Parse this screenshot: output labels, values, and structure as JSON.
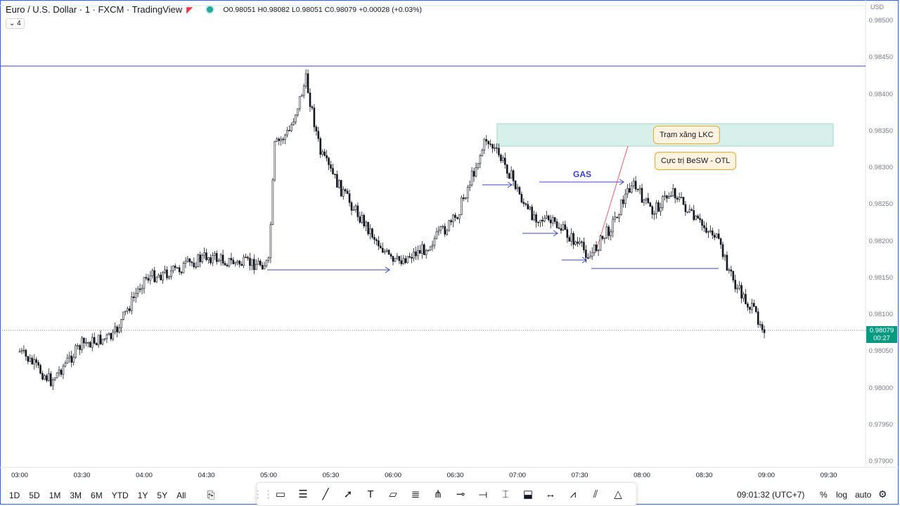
{
  "legend": {
    "symbol": "Euro / U.S. Dollar · 1 · FXCM · TradingView",
    "ohlc": "O0.98051 H0.98082 L0.98051 C0.98079 +0.00028 (+0.03%)",
    "collapse_count": "4"
  },
  "currency": "USD",
  "price_axis": [
    "0.98500",
    "0.98450",
    "0.98400",
    "0.98350",
    "0.98300",
    "0.98250",
    "0.98200",
    "0.98150",
    "0.98100",
    "0.98050",
    "0.98000",
    "0.97950",
    "0.97900"
  ],
  "last_price": {
    "value": "0.98079",
    "countdown": "00:27"
  },
  "time_axis": [
    "03:00",
    "03:30",
    "04:00",
    "04:30",
    "05:00",
    "05:30",
    "06:00",
    "06:30",
    "07:00",
    "07:30",
    "08:00",
    "08:30",
    "09:00",
    "09:30"
  ],
  "annotations": {
    "callout_1": "Trạm xăng LKC",
    "callout_2": "Cực trị BeSW - OTL",
    "gas_label": "GAS"
  },
  "timeframes": [
    "1D",
    "5D",
    "1M",
    "3M",
    "6M",
    "YTD",
    "1Y",
    "5Y",
    "All"
  ],
  "tools": [
    "rectangle-icon",
    "fib-icon",
    "trendline-icon",
    "ray-icon",
    "text-icon",
    "callout-icon",
    "parallel-channel-icon",
    "pitchfork-icon",
    "horizontal-ray-icon",
    "horizontal-line-icon",
    "price-range-icon",
    "note-icon",
    "date-range-icon",
    "path-icon",
    "gann-icon",
    "triangle-icon"
  ],
  "clock": "09:01:32 (UTC+7)",
  "options": {
    "percent": "%",
    "log": "log",
    "auto": "auto"
  },
  "colors": {
    "up": "#089981",
    "candle": "#131722",
    "zone": "#d7f0ea",
    "arrow": "#3a44c9",
    "trend": "#f23645"
  },
  "chart_data": {
    "type": "candlestick",
    "x_range": [
      "03:00",
      "09:30"
    ],
    "y_range": [
      0.979,
      0.985
    ],
    "close_path": [
      [
        "03:00",
        0.9805
      ],
      [
        "03:15",
        0.9801
      ],
      [
        "03:30",
        0.9806
      ],
      [
        "03:45",
        0.9807
      ],
      [
        "04:00",
        0.9815
      ],
      [
        "04:15",
        0.9816
      ],
      [
        "04:30",
        0.9818
      ],
      [
        "04:45",
        0.9817
      ],
      [
        "05:00",
        0.9817
      ],
      [
        "05:03",
        0.9833
      ],
      [
        "05:10",
        0.9835
      ],
      [
        "05:18",
        0.9842
      ],
      [
        "05:25",
        0.9832
      ],
      [
        "05:35",
        0.9827
      ],
      [
        "05:45",
        0.9823
      ],
      [
        "06:00",
        0.9817
      ],
      [
        "06:15",
        0.9819
      ],
      [
        "06:30",
        0.9823
      ],
      [
        "06:45",
        0.9834
      ],
      [
        "06:55",
        0.983
      ],
      [
        "07:05",
        0.9824
      ],
      [
        "07:20",
        0.9822
      ],
      [
        "07:35",
        0.9818
      ],
      [
        "07:45",
        0.9822
      ],
      [
        "07:55",
        0.9828
      ],
      [
        "08:05",
        0.9824
      ],
      [
        "08:15",
        0.9827
      ],
      [
        "08:25",
        0.9823
      ],
      [
        "08:35",
        0.9821
      ],
      [
        "08:45",
        0.9814
      ],
      [
        "09:00",
        0.98079
      ]
    ],
    "levels": [
      {
        "name": "high-line",
        "price": 0.9844
      },
      {
        "name": "current-price-line",
        "price": 0.98079
      }
    ],
    "zone": {
      "from": "06:52",
      "to": "09:12",
      "top": 0.9836,
      "bottom": 0.9833
    }
  }
}
